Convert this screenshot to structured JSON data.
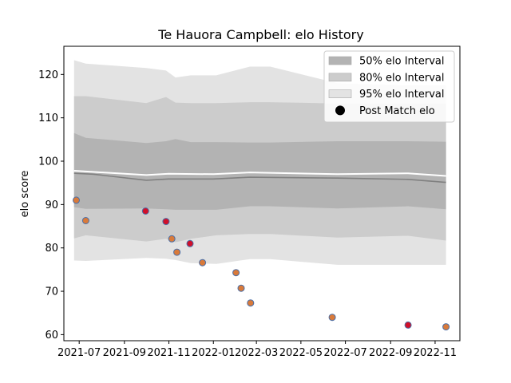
{
  "chart_data": {
    "type": "line",
    "title": "Te Hauora Campbell: elo History",
    "xlabel": "",
    "ylabel": "elo score",
    "xlim": [
      "2021-06-10",
      "2022-12-05"
    ],
    "ylim": [
      58.6,
      126.5
    ],
    "x_ticks": [
      "2021-07",
      "2021-09",
      "2021-11",
      "2022-01",
      "2022-03",
      "2022-05",
      "2022-07",
      "2022-09",
      "2022-11"
    ],
    "y_ticks": [
      60,
      70,
      80,
      90,
      100,
      110,
      120
    ],
    "legend_position": "top-right",
    "legend": [
      {
        "label": "50% elo Interval",
        "kind": "band",
        "color": "#b3b3b3"
      },
      {
        "label": "80% elo Interval",
        "kind": "band",
        "color": "#cccccc"
      },
      {
        "label": "95% elo Interval",
        "kind": "band",
        "color": "#e3e3e3"
      },
      {
        "label": "Post Match elo",
        "kind": "marker",
        "color": "#000000"
      }
    ],
    "bands": {
      "x": [
        "2021-06-24",
        "2021-07-10",
        "2021-10-01",
        "2021-10-28",
        "2021-11-10",
        "2021-12-01",
        "2022-01-05",
        "2022-02-20",
        "2022-03-20",
        "2022-06-20",
        "2022-09-25",
        "2022-11-16"
      ],
      "p95": {
        "upper": [
          123.3,
          122.5,
          121.5,
          120.9,
          119.3,
          119.8,
          119.8,
          121.8,
          121.8,
          118.0,
          117.5,
          117.5
        ],
        "lower": [
          77.1,
          77.0,
          77.7,
          77.5,
          77.2,
          76.5,
          76.3,
          77.4,
          77.4,
          76.1,
          76.1,
          76.1
        ]
      },
      "p80": {
        "upper": [
          115.0,
          115.0,
          113.4,
          114.8,
          113.5,
          113.4,
          113.4,
          113.6,
          113.6,
          113.3,
          113.3,
          113.3
        ],
        "lower": [
          82.2,
          82.9,
          81.5,
          82.1,
          81.3,
          82.1,
          82.9,
          83.2,
          83.2,
          82.4,
          82.8,
          81.7
        ]
      },
      "p50": {
        "upper": [
          106.5,
          105.4,
          104.2,
          104.6,
          105.1,
          104.4,
          104.4,
          104.3,
          104.3,
          104.6,
          104.6,
          104.5
        ],
        "lower": [
          89.4,
          89.0,
          89.1,
          88.9,
          88.8,
          88.8,
          88.8,
          89.6,
          89.6,
          89.1,
          89.6,
          88.9
        ]
      }
    },
    "series": [
      {
        "kind": "mean",
        "color": "#ffffff",
        "x": [
          "2021-06-24",
          "2021-10-01",
          "2021-11-01",
          "2022-01-01",
          "2022-02-20",
          "2022-06-20",
          "2022-09-25",
          "2022-11-16"
        ],
        "values": [
          97.8,
          96.8,
          97.1,
          97.0,
          97.4,
          97.0,
          97.2,
          96.6
        ]
      },
      {
        "kind": "median",
        "color": "#808080",
        "x": [
          "2021-06-24",
          "2021-07-20",
          "2021-10-01",
          "2021-11-01",
          "2022-01-01",
          "2022-02-20",
          "2022-06-20",
          "2022-09-25",
          "2022-11-16"
        ],
        "values": [
          97.2,
          97.0,
          95.6,
          95.9,
          95.9,
          96.3,
          96.1,
          95.8,
          95.1
        ]
      }
    ],
    "points": {
      "name": "Post Match elo",
      "edge_color": "#4a6fa8",
      "items": [
        {
          "date": "2021-06-27",
          "value": 91.0,
          "fill": "#d97a3a"
        },
        {
          "date": "2021-07-10",
          "value": 86.3,
          "fill": "#d97a3a"
        },
        {
          "date": "2021-09-30",
          "value": 88.5,
          "fill": "#d0102a"
        },
        {
          "date": "2021-10-28",
          "value": 86.1,
          "fill": "#d0102a"
        },
        {
          "date": "2021-11-05",
          "value": 82.1,
          "fill": "#d97a3a"
        },
        {
          "date": "2021-11-12",
          "value": 79.0,
          "fill": "#d97a3a"
        },
        {
          "date": "2021-11-30",
          "value": 81.0,
          "fill": "#d0102a"
        },
        {
          "date": "2021-12-17",
          "value": 76.6,
          "fill": "#d97a3a"
        },
        {
          "date": "2022-02-01",
          "value": 74.3,
          "fill": "#d97a3a"
        },
        {
          "date": "2022-02-08",
          "value": 70.7,
          "fill": "#d97a3a"
        },
        {
          "date": "2022-02-21",
          "value": 67.3,
          "fill": "#d97a3a"
        },
        {
          "date": "2022-06-13",
          "value": 64.0,
          "fill": "#d97a3a"
        },
        {
          "date": "2022-09-25",
          "value": 62.2,
          "fill": "#d0102a"
        },
        {
          "date": "2022-11-16",
          "value": 61.8,
          "fill": "#d97a3a"
        }
      ]
    }
  }
}
